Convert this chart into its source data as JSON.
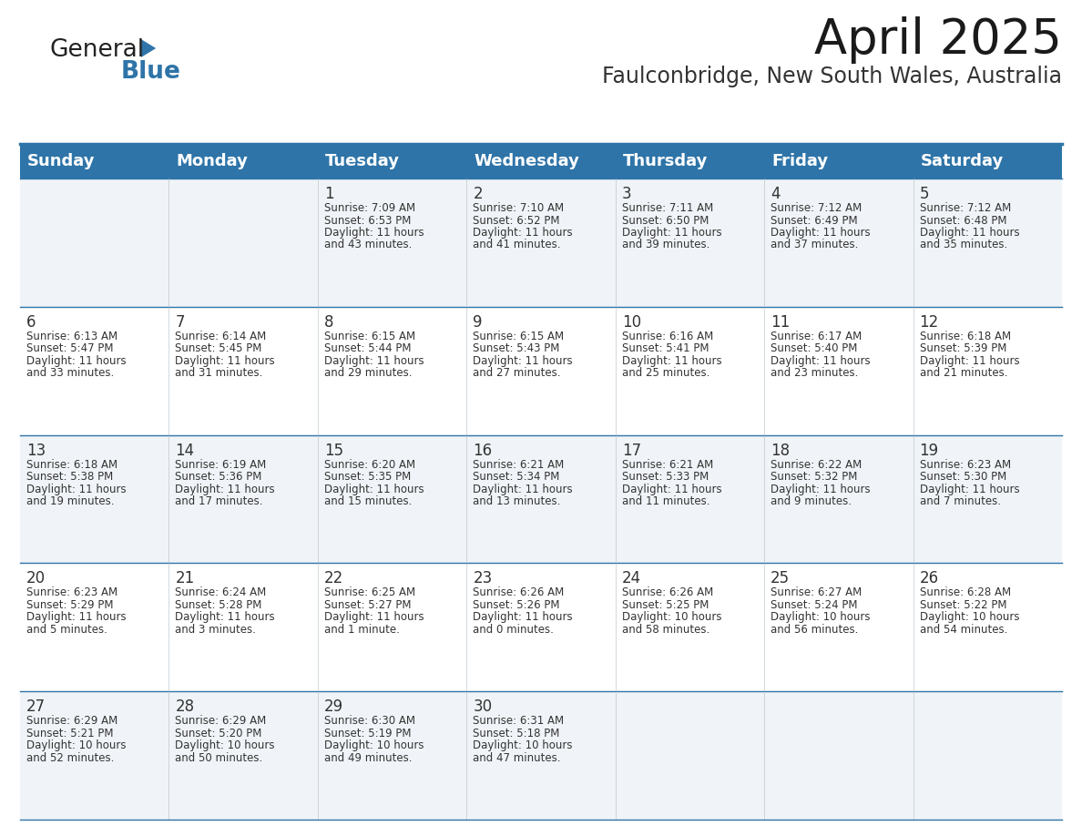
{
  "title": "April 2025",
  "subtitle": "Faulconbridge, New South Wales, Australia",
  "header_bg": "#2E74A8",
  "header_text_color": "#FFFFFF",
  "cell_bg_odd": "#F0F4F8",
  "cell_bg_even": "#FFFFFF",
  "grid_line_color": "#2E74A8",
  "text_color": "#333333",
  "day_names": [
    "Sunday",
    "Monday",
    "Tuesday",
    "Wednesday",
    "Thursday",
    "Friday",
    "Saturday"
  ],
  "logo_general_color": "#222222",
  "logo_blue_color": "#2E74A8",
  "title_fontsize": 38,
  "subtitle_fontsize": 17,
  "header_fontsize": 13,
  "day_num_fontsize": 12,
  "cell_text_fontsize": 8.5,
  "weeks": [
    [
      {
        "day": "",
        "sunrise": "",
        "sunset": "",
        "daylight": ""
      },
      {
        "day": "",
        "sunrise": "",
        "sunset": "",
        "daylight": ""
      },
      {
        "day": "1",
        "sunrise": "Sunrise: 7:09 AM",
        "sunset": "Sunset: 6:53 PM",
        "daylight": "Daylight: 11 hours\nand 43 minutes."
      },
      {
        "day": "2",
        "sunrise": "Sunrise: 7:10 AM",
        "sunset": "Sunset: 6:52 PM",
        "daylight": "Daylight: 11 hours\nand 41 minutes."
      },
      {
        "day": "3",
        "sunrise": "Sunrise: 7:11 AM",
        "sunset": "Sunset: 6:50 PM",
        "daylight": "Daylight: 11 hours\nand 39 minutes."
      },
      {
        "day": "4",
        "sunrise": "Sunrise: 7:12 AM",
        "sunset": "Sunset: 6:49 PM",
        "daylight": "Daylight: 11 hours\nand 37 minutes."
      },
      {
        "day": "5",
        "sunrise": "Sunrise: 7:12 AM",
        "sunset": "Sunset: 6:48 PM",
        "daylight": "Daylight: 11 hours\nand 35 minutes."
      }
    ],
    [
      {
        "day": "6",
        "sunrise": "Sunrise: 6:13 AM",
        "sunset": "Sunset: 5:47 PM",
        "daylight": "Daylight: 11 hours\nand 33 minutes."
      },
      {
        "day": "7",
        "sunrise": "Sunrise: 6:14 AM",
        "sunset": "Sunset: 5:45 PM",
        "daylight": "Daylight: 11 hours\nand 31 minutes."
      },
      {
        "day": "8",
        "sunrise": "Sunrise: 6:15 AM",
        "sunset": "Sunset: 5:44 PM",
        "daylight": "Daylight: 11 hours\nand 29 minutes."
      },
      {
        "day": "9",
        "sunrise": "Sunrise: 6:15 AM",
        "sunset": "Sunset: 5:43 PM",
        "daylight": "Daylight: 11 hours\nand 27 minutes."
      },
      {
        "day": "10",
        "sunrise": "Sunrise: 6:16 AM",
        "sunset": "Sunset: 5:41 PM",
        "daylight": "Daylight: 11 hours\nand 25 minutes."
      },
      {
        "day": "11",
        "sunrise": "Sunrise: 6:17 AM",
        "sunset": "Sunset: 5:40 PM",
        "daylight": "Daylight: 11 hours\nand 23 minutes."
      },
      {
        "day": "12",
        "sunrise": "Sunrise: 6:18 AM",
        "sunset": "Sunset: 5:39 PM",
        "daylight": "Daylight: 11 hours\nand 21 minutes."
      }
    ],
    [
      {
        "day": "13",
        "sunrise": "Sunrise: 6:18 AM",
        "sunset": "Sunset: 5:38 PM",
        "daylight": "Daylight: 11 hours\nand 19 minutes."
      },
      {
        "day": "14",
        "sunrise": "Sunrise: 6:19 AM",
        "sunset": "Sunset: 5:36 PM",
        "daylight": "Daylight: 11 hours\nand 17 minutes."
      },
      {
        "day": "15",
        "sunrise": "Sunrise: 6:20 AM",
        "sunset": "Sunset: 5:35 PM",
        "daylight": "Daylight: 11 hours\nand 15 minutes."
      },
      {
        "day": "16",
        "sunrise": "Sunrise: 6:21 AM",
        "sunset": "Sunset: 5:34 PM",
        "daylight": "Daylight: 11 hours\nand 13 minutes."
      },
      {
        "day": "17",
        "sunrise": "Sunrise: 6:21 AM",
        "sunset": "Sunset: 5:33 PM",
        "daylight": "Daylight: 11 hours\nand 11 minutes."
      },
      {
        "day": "18",
        "sunrise": "Sunrise: 6:22 AM",
        "sunset": "Sunset: 5:32 PM",
        "daylight": "Daylight: 11 hours\nand 9 minutes."
      },
      {
        "day": "19",
        "sunrise": "Sunrise: 6:23 AM",
        "sunset": "Sunset: 5:30 PM",
        "daylight": "Daylight: 11 hours\nand 7 minutes."
      }
    ],
    [
      {
        "day": "20",
        "sunrise": "Sunrise: 6:23 AM",
        "sunset": "Sunset: 5:29 PM",
        "daylight": "Daylight: 11 hours\nand 5 minutes."
      },
      {
        "day": "21",
        "sunrise": "Sunrise: 6:24 AM",
        "sunset": "Sunset: 5:28 PM",
        "daylight": "Daylight: 11 hours\nand 3 minutes."
      },
      {
        "day": "22",
        "sunrise": "Sunrise: 6:25 AM",
        "sunset": "Sunset: 5:27 PM",
        "daylight": "Daylight: 11 hours\nand 1 minute."
      },
      {
        "day": "23",
        "sunrise": "Sunrise: 6:26 AM",
        "sunset": "Sunset: 5:26 PM",
        "daylight": "Daylight: 11 hours\nand 0 minutes."
      },
      {
        "day": "24",
        "sunrise": "Sunrise: 6:26 AM",
        "sunset": "Sunset: 5:25 PM",
        "daylight": "Daylight: 10 hours\nand 58 minutes."
      },
      {
        "day": "25",
        "sunrise": "Sunrise: 6:27 AM",
        "sunset": "Sunset: 5:24 PM",
        "daylight": "Daylight: 10 hours\nand 56 minutes."
      },
      {
        "day": "26",
        "sunrise": "Sunrise: 6:28 AM",
        "sunset": "Sunset: 5:22 PM",
        "daylight": "Daylight: 10 hours\nand 54 minutes."
      }
    ],
    [
      {
        "day": "27",
        "sunrise": "Sunrise: 6:29 AM",
        "sunset": "Sunset: 5:21 PM",
        "daylight": "Daylight: 10 hours\nand 52 minutes."
      },
      {
        "day": "28",
        "sunrise": "Sunrise: 6:29 AM",
        "sunset": "Sunset: 5:20 PM",
        "daylight": "Daylight: 10 hours\nand 50 minutes."
      },
      {
        "day": "29",
        "sunrise": "Sunrise: 6:30 AM",
        "sunset": "Sunset: 5:19 PM",
        "daylight": "Daylight: 10 hours\nand 49 minutes."
      },
      {
        "day": "30",
        "sunrise": "Sunrise: 6:31 AM",
        "sunset": "Sunset: 5:18 PM",
        "daylight": "Daylight: 10 hours\nand 47 minutes."
      },
      {
        "day": "",
        "sunrise": "",
        "sunset": "",
        "daylight": ""
      },
      {
        "day": "",
        "sunrise": "",
        "sunset": "",
        "daylight": ""
      },
      {
        "day": "",
        "sunrise": "",
        "sunset": "",
        "daylight": ""
      }
    ]
  ]
}
